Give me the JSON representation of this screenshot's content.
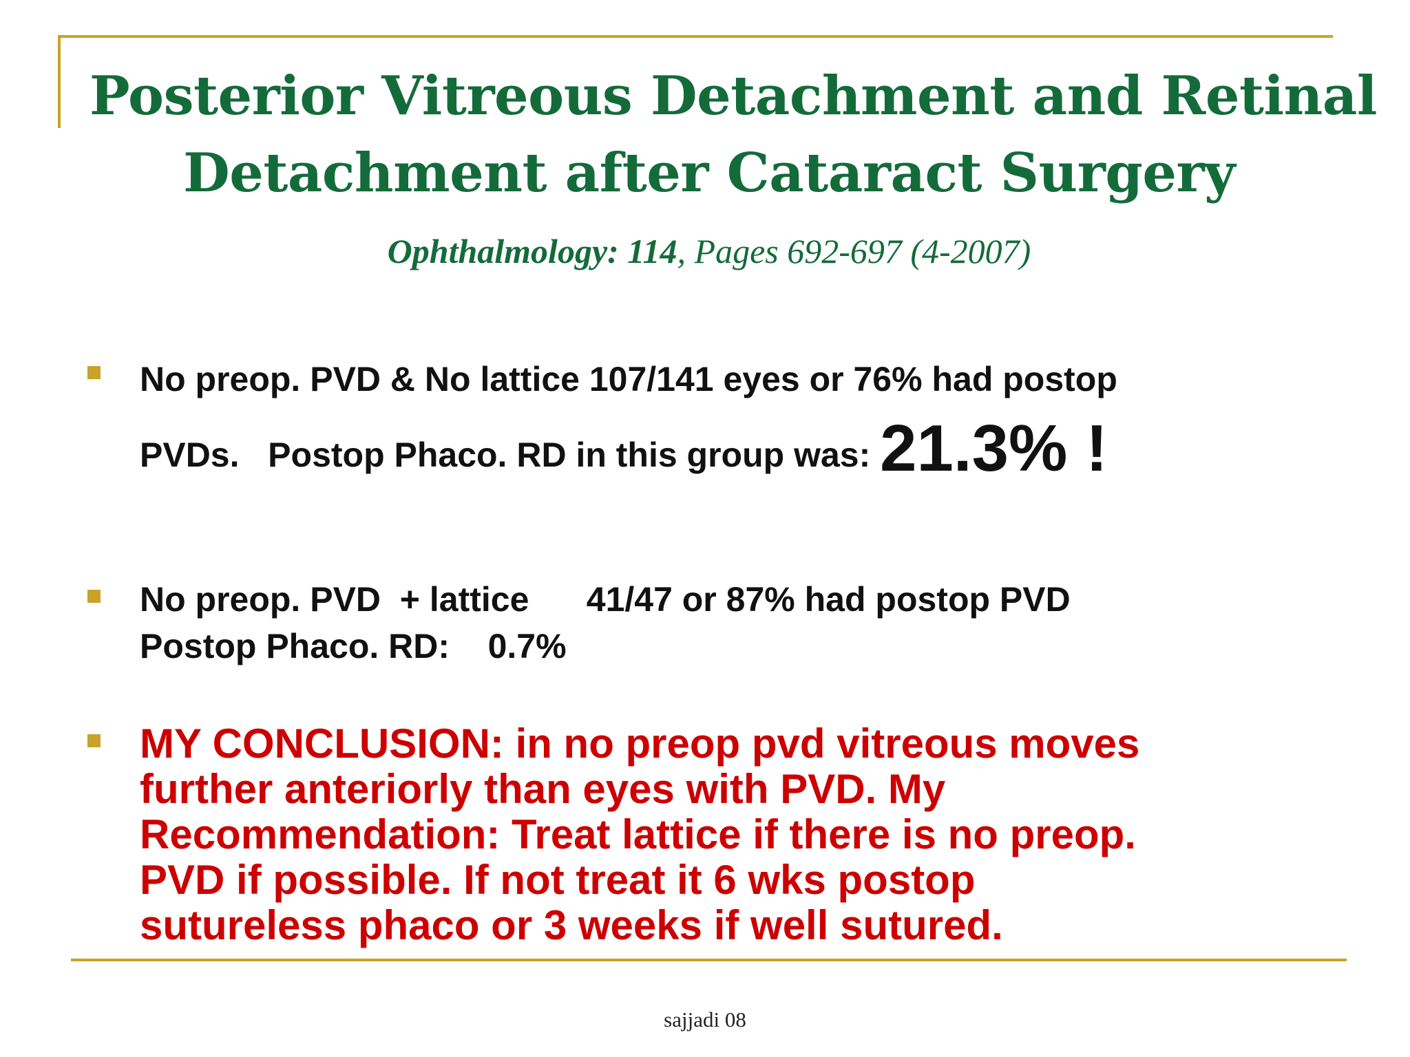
{
  "slide": {
    "title_line1": "Posterior Vitreous Detachment and Retinal",
    "title_line2": "Detachment after Cataract Surgery",
    "citation": {
      "journal": "Ophthalmology: 114",
      "pages": ", Pages 692-697 (4-2007)"
    },
    "bullets": [
      {
        "line1": "No preop. PVD & No lattice 107/141 eyes or 76% had postop",
        "line2_prefix": "PVDs.   Postop Phaco. RD in this group was: ",
        "line2_highlight": "21.3% !"
      },
      {
        "line1": "No preop. PVD  + lattice      41/47 or 87% had postop PVD",
        "line2": "Postop Phaco. RD:    0.7%"
      },
      {
        "text": "MY CONCLUSION: in no preop pvd vitreous moves\nfurther anteriorly than eyes with PVD. My\nRecommendation: Treat lattice if there is no preop.\nPVD if possible.  If not treat it 6 wks postop\nsutureless phaco or 3 weeks if well sutured."
      }
    ],
    "footer": "sajjadi 08"
  },
  "colors": {
    "title": "#146b3a",
    "accent_gold": "#c9a227",
    "body": "#111111",
    "conclusion": "#cc0000"
  }
}
